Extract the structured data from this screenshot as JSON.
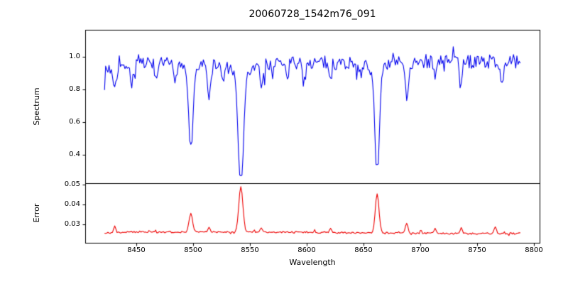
{
  "chart_data": {
    "type": "line",
    "title": "20060728_1542m76_091",
    "xlabel": "Wavelength",
    "xlim": [
      8405,
      8805
    ],
    "x_data_range": [
      8422,
      8788
    ],
    "x_step": 1,
    "xticks": {
      "values": [
        8450,
        8500,
        8550,
        8600,
        8650,
        8700,
        8750,
        8800
      ],
      "labels": [
        "8450",
        "8500",
        "8550",
        "8600",
        "8650",
        "8700",
        "8750",
        "8800"
      ]
    },
    "style": {
      "background": "#ffffff",
      "axis_color": "#000000",
      "text_color": "#000000",
      "grid": false,
      "legend": false
    },
    "panels": [
      {
        "name": "spectrum",
        "ylabel": "Spectrum",
        "ylim": [
          0.225,
          1.165
        ],
        "yticks": {
          "values": [
            0.4,
            0.6,
            0.8,
            1.0
          ],
          "labels": [
            "0.4",
            "0.6",
            "0.8",
            "1.0"
          ]
        },
        "series": {
          "name": "normalized-spectrum",
          "color": "#0000ee",
          "baseline_points": [
            [
              8422,
              0.925
            ],
            [
              8460,
              0.955
            ],
            [
              8540,
              0.96
            ],
            [
              8650,
              0.965
            ],
            [
              8788,
              0.972
            ]
          ],
          "noise": 0.042,
          "absorption_lines": [
            {
              "center": 8498,
              "min": 0.46,
              "sigma": 1.8,
              "wing": 0.12,
              "wing_scale": 6
            },
            {
              "center": 8542,
              "min": 0.27,
              "sigma": 2.2,
              "wing": 0.18,
              "wing_scale": 8
            },
            {
              "center": 8662,
              "min": 0.34,
              "sigma": 1.9,
              "wing": 0.15,
              "wing_scale": 7
            },
            {
              "center": 8431,
              "min": 0.79,
              "sigma": 1.3
            },
            {
              "center": 8446,
              "min": 0.83,
              "sigma": 1.2
            },
            {
              "center": 8468,
              "min": 0.84,
              "sigma": 1.2
            },
            {
              "center": 8484,
              "min": 0.86,
              "sigma": 1.1
            },
            {
              "center": 8514,
              "min": 0.76,
              "sigma": 1.4
            },
            {
              "center": 8526,
              "min": 0.86,
              "sigma": 1.1
            },
            {
              "center": 8560,
              "min": 0.84,
              "sigma": 1.2
            },
            {
              "center": 8583,
              "min": 0.85,
              "sigma": 1.2
            },
            {
              "center": 8598,
              "min": 0.86,
              "sigma": 1.1
            },
            {
              "center": 8621,
              "min": 0.86,
              "sigma": 1.1
            },
            {
              "center": 8648,
              "min": 0.88,
              "sigma": 1.0
            },
            {
              "center": 8688,
              "min": 0.74,
              "sigma": 1.5
            },
            {
              "center": 8713,
              "min": 0.87,
              "sigma": 1.1
            },
            {
              "center": 8736,
              "min": 0.86,
              "sigma": 1.1
            },
            {
              "center": 8772,
              "min": 0.83,
              "sigma": 1.2
            }
          ]
        }
      },
      {
        "name": "error",
        "ylabel": "Error",
        "ylim": [
          0.0207,
          0.0507
        ],
        "yticks": {
          "values": [
            0.03,
            0.04,
            0.05
          ],
          "labels": [
            "0.03",
            "0.04",
            "0.05"
          ]
        },
        "series": {
          "name": "error-spectrum",
          "color": "#ee0000",
          "baseline_points": [
            [
              8422,
              0.0256
            ],
            [
              8450,
              0.0262
            ],
            [
              8600,
              0.026
            ],
            [
              8700,
              0.0255
            ],
            [
              8788,
              0.0253
            ]
          ],
          "noise": 0.00045,
          "peaks": [
            {
              "center": 8498,
              "max": 0.0355,
              "sigma": 1.5
            },
            {
              "center": 8542,
              "max": 0.049,
              "sigma": 1.8
            },
            {
              "center": 8662,
              "max": 0.0455,
              "sigma": 1.6
            },
            {
              "center": 8688,
              "max": 0.0305,
              "sigma": 1.2
            },
            {
              "center": 8431,
              "max": 0.029,
              "sigma": 1.0
            },
            {
              "center": 8514,
              "max": 0.0285,
              "sigma": 1.0
            },
            {
              "center": 8560,
              "max": 0.0283,
              "sigma": 1.0
            },
            {
              "center": 8621,
              "max": 0.028,
              "sigma": 0.9
            },
            {
              "center": 8713,
              "max": 0.028,
              "sigma": 0.9
            },
            {
              "center": 8736,
              "max": 0.0284,
              "sigma": 0.9
            },
            {
              "center": 8766,
              "max": 0.0288,
              "sigma": 1.0
            }
          ]
        }
      }
    ]
  }
}
